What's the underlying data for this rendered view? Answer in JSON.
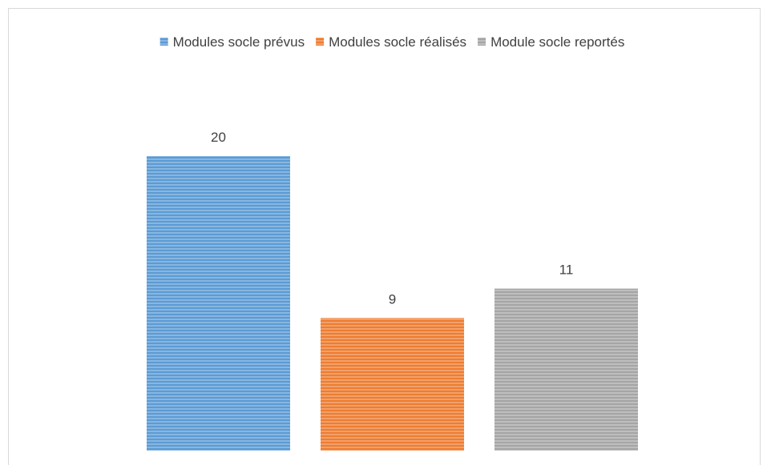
{
  "chart_data": {
    "type": "bar",
    "categories": [
      null
    ],
    "series": [
      {
        "name": "Modules socle prévus",
        "color": "#5b9bd5",
        "values": [
          20
        ]
      },
      {
        "name": "Modules socle réalisés",
        "color": "#ed7d31",
        "values": [
          9
        ]
      },
      {
        "name": "Module socle reportés",
        "color": "#a5a5a5",
        "values": [
          11
        ]
      }
    ],
    "ylim": [
      0,
      25
    ],
    "legend": "top",
    "grid": false
  }
}
